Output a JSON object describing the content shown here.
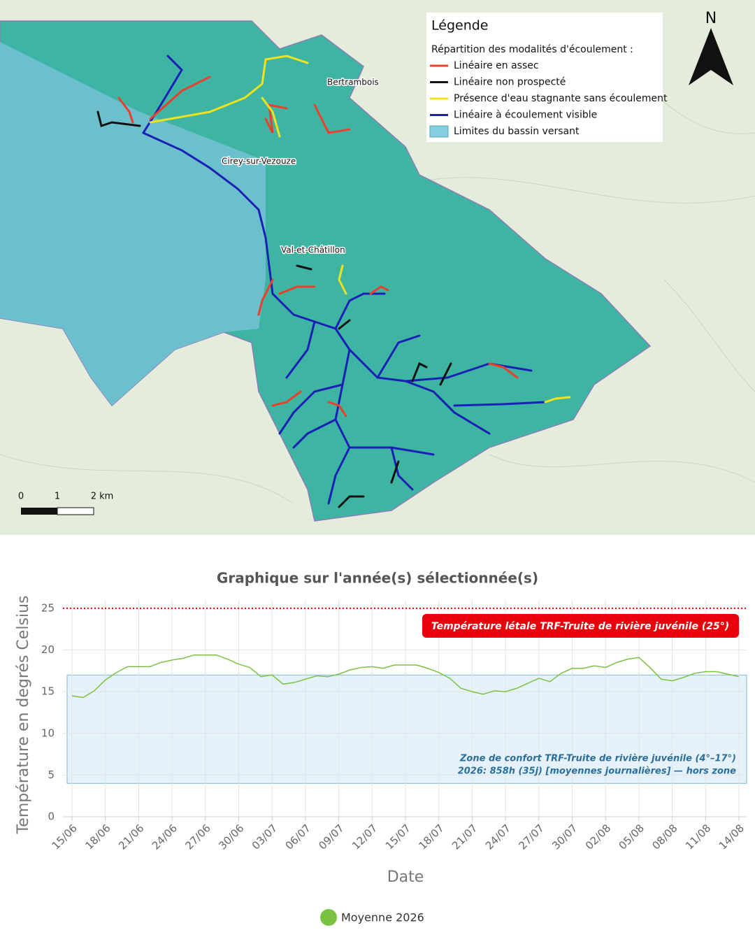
{
  "map": {
    "legend": {
      "title": "Légende",
      "subtitle": "Répartition des modalités d'écoulement :",
      "items": [
        {
          "label": "Linéaire en assec",
          "color": "#e8412c",
          "kind": "line"
        },
        {
          "label": "Linéaire non prospecté",
          "color": "#111111",
          "kind": "line"
        },
        {
          "label": "Présence d'eau stagnante sans écoulement",
          "color": "#f2e21c",
          "kind": "line"
        },
        {
          "label": "Linéaire à écoulement visible",
          "color": "#1a1fb5",
          "kind": "line"
        },
        {
          "label": "Limites du bassin versant",
          "color": "#86cfe0",
          "kind": "box"
        }
      ]
    },
    "places": [
      "Bertrambois",
      "Cirey-sur-Vezouze",
      "Val-et-Châtillon"
    ],
    "scale": [
      "0",
      "1",
      "2 km"
    ],
    "north": "N"
  },
  "chart_data": {
    "type": "line",
    "title": "Graphique sur l'année(s) sélectionnée(s)",
    "x_label": "Date",
    "y_label": "Température en degrés Celsius",
    "categories": [
      "15/06",
      null,
      null,
      "18/06",
      null,
      null,
      "21/06",
      null,
      null,
      "24/06",
      null,
      null,
      "27/06",
      null,
      null,
      "30/06",
      null,
      null,
      "03/07",
      null,
      null,
      "06/07",
      null,
      null,
      "09/07",
      null,
      null,
      "12/07",
      null,
      null,
      "15/07",
      null,
      null,
      "18/07",
      null,
      null,
      "21/07",
      null,
      null,
      "24/07",
      null,
      null,
      "27/07",
      null,
      null,
      "30/07",
      null,
      null,
      "02/08",
      null,
      null,
      "05/08",
      null,
      null,
      "08/08",
      null,
      null,
      "11/08",
      null,
      null,
      "14/08"
    ],
    "series": [
      {
        "name": "Moyenne 2026",
        "color": "#7cc242",
        "values": [
          14.5,
          14.3,
          15.1,
          16.4,
          17.3,
          18.0,
          18.0,
          18.0,
          18.5,
          18.8,
          19.0,
          19.4,
          19.4,
          19.4,
          18.9,
          18.3,
          17.9,
          16.8,
          17.0,
          15.9,
          16.1,
          16.5,
          16.9,
          16.8,
          17.1,
          17.6,
          17.9,
          18.0,
          17.8,
          18.2,
          18.2,
          18.2,
          17.8,
          17.3,
          16.6,
          15.4,
          15.0,
          14.7,
          15.1,
          15.0,
          15.4,
          16.0,
          16.6,
          16.2,
          17.2,
          17.8,
          17.8,
          18.1,
          17.9,
          18.5,
          18.9,
          19.1,
          17.9,
          16.5,
          16.3,
          16.7,
          17.2,
          17.4,
          17.4,
          17.1,
          16.8
        ]
      }
    ],
    "ylim": [
      0,
      26
    ],
    "yticks": [
      0,
      5,
      10,
      15,
      20,
      25
    ],
    "grid": true,
    "comfort_zone": {
      "range": [
        4,
        17
      ],
      "color": "#d6e9f7",
      "labels": [
        "Zone de confort TRF-Truite de rivière juvénile (4°–17°)",
        "2026: 858h (35j) [moyennes journalières] — hors zone"
      ]
    },
    "lethal_line": {
      "value": 25,
      "color": "#e8000b",
      "label": "Température létale TRF-Truite de rivière juvénile (25°)"
    }
  }
}
